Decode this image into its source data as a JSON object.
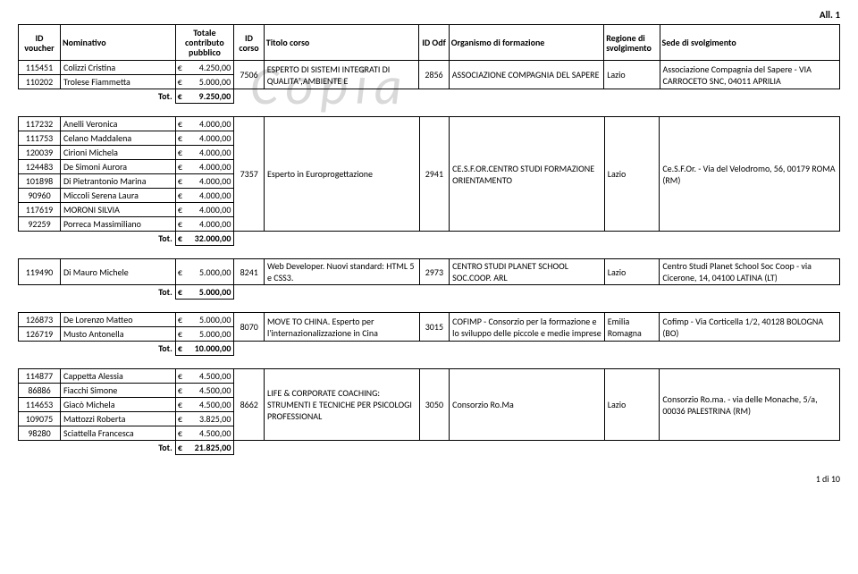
{
  "corner_label": "All. 1",
  "watermark": "Copia",
  "header": {
    "id_voucher": "ID voucher",
    "nominativo": "Nominativo",
    "totale": "Totale contributo pubblico",
    "id_corso": "ID corso",
    "titolo": "Titolo corso",
    "id_odf": "ID Odf",
    "organismo": "Organismo di formazione",
    "regione": "Regione di svolgimento",
    "sede": "Sede di svolgimento"
  },
  "euro": "€",
  "tot_label": "Tot.",
  "groups": [
    {
      "rows": [
        {
          "id": "115451",
          "nome": "Colizzi Cristina",
          "importo": "4.250,00"
        },
        {
          "id": "110202",
          "nome": "Trolese Fiammetta",
          "importo": "5.000,00"
        }
      ],
      "tot": "9.250,00",
      "id_corso": "7506",
      "titolo": "ESPERTO DI SISTEMI INTEGRATI DI QUALITA',AMBIENTE E",
      "id_odf": "2856",
      "organismo": "ASSOCIAZIONE COMPAGNIA DEL SAPERE",
      "regione": "Lazio",
      "sede": "Associazione Compagnia del Sapere - VIA CARROCETO SNC, 04011 APRILIA"
    },
    {
      "rows": [
        {
          "id": "117232",
          "nome": "Anelli Veronica",
          "importo": "4.000,00"
        },
        {
          "id": "111753",
          "nome": "Celano Maddalena",
          "importo": "4.000,00"
        },
        {
          "id": "120039",
          "nome": "Cirioni Michela",
          "importo": "4.000,00"
        },
        {
          "id": "124483",
          "nome": "De Simoni Aurora",
          "importo": "4.000,00"
        },
        {
          "id": "101898",
          "nome": "Di Pietrantonio Marina",
          "importo": "4.000,00"
        },
        {
          "id": "90960",
          "nome": "Miccoli Serena Laura",
          "importo": "4.000,00"
        },
        {
          "id": "117619",
          "nome": "MORONI SILVIA",
          "importo": "4.000,00"
        },
        {
          "id": "92259",
          "nome": "Porreca Massimiliano",
          "importo": "4.000,00"
        }
      ],
      "tot": "32.000,00",
      "id_corso": "7357",
      "titolo": "Esperto in Europrogettazione",
      "id_odf": "2941",
      "organismo": "CE.S.F.OR.CENTRO STUDI FORMAZIONE ORIENTAMENTO",
      "regione": "Lazio",
      "sede": "Ce.S.F.Or. - Via del Velodromo, 56, 00179 ROMA (RM)"
    },
    {
      "rows": [
        {
          "id": "119490",
          "nome": "Di Mauro Michele",
          "importo": "5.000,00"
        }
      ],
      "tot": "5.000,00",
      "id_corso": "8241",
      "titolo": "Web Developer. Nuovi standard: HTML 5 e CSS3.",
      "id_odf": "2973",
      "organismo": "CENTRO STUDI PLANET SCHOOL SOC.COOP. ARL",
      "regione": "Lazio",
      "sede": "Centro Studi Planet School Soc Coop - via Cicerone, 14, 04100 LATINA (LT)"
    },
    {
      "rows": [
        {
          "id": "126873",
          "nome": "De Lorenzo Matteo",
          "importo": "5.000,00"
        },
        {
          "id": "126719",
          "nome": "Musto Antonella",
          "importo": "5.000,00"
        }
      ],
      "tot": "10.000,00",
      "id_corso": "8070",
      "titolo": "MOVE TO CHINA. Esperto per l'internazionalizzazione in Cina",
      "id_odf": "3015",
      "organismo": "COFIMP - Consorzio per la formazione e lo sviluppo delle piccole e medie imprese",
      "regione": "Emilia Romagna",
      "sede": "Cofimp - Via Corticella 1/2, 40128 BOLOGNA (BO)"
    },
    {
      "rows": [
        {
          "id": "114877",
          "nome": "Cappetta Alessia",
          "importo": "4.500,00"
        },
        {
          "id": "86886",
          "nome": "Fiacchi Simone",
          "importo": "4.500,00"
        },
        {
          "id": "114653",
          "nome": "Giacò Michela",
          "importo": "4.500,00"
        },
        {
          "id": "109075",
          "nome": "Mattozzi Roberta",
          "importo": "3.825,00"
        },
        {
          "id": "98280",
          "nome": "Sciattella Francesca",
          "importo": "4.500,00"
        }
      ],
      "tot": "21.825,00",
      "id_corso": "8662",
      "titolo": "LIFE & CORPORATE COACHING: STRUMENTI E TECNICHE PER PSICOLOGI PROFESSIONAL",
      "id_odf": "3050",
      "organismo": "Consorzio Ro.Ma",
      "regione": "Lazio",
      "sede": "Consorzio Ro.ma. - via delle Monache, 5/a, 00036 PALESTRINA (RM)"
    }
  ],
  "footer": "1 di 10"
}
